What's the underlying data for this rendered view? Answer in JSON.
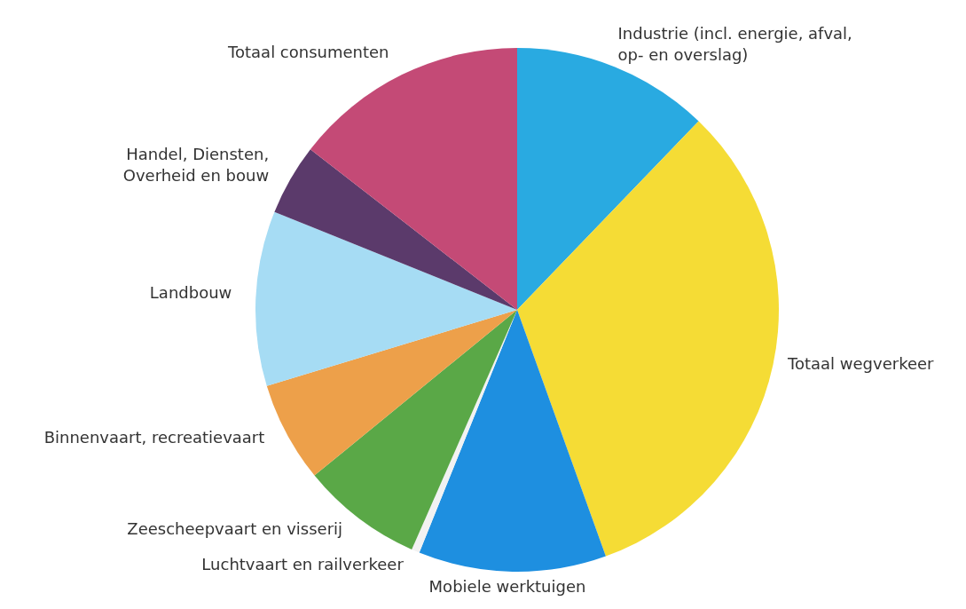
{
  "chart_data": {
    "type": "pie",
    "categories": [
      "Industrie (incl. energie, afval, op- en overslag)",
      "Totaal wegverkeer",
      "Mobiele werktuigen",
      "Luchtvaart en railverkeer",
      "Zeescheepvaart en visserij",
      "Binnenvaart, recreatievaart",
      "Landbouw",
      "Handel, Diensten, Overheid en bouw",
      "Totaal consumenten"
    ],
    "values": [
      12.2,
      32.3,
      11.6,
      0.5,
      7.5,
      6.2,
      10.8,
      4.4,
      14.5
    ],
    "colors": [
      "#29aae1",
      "#f5dc35",
      "#1e8fe0",
      "#f2f2f2",
      "#5aa847",
      "#eda04a",
      "#a6dcf4",
      "#5b3a6b",
      "#c44a76"
    ],
    "legend": false
  }
}
